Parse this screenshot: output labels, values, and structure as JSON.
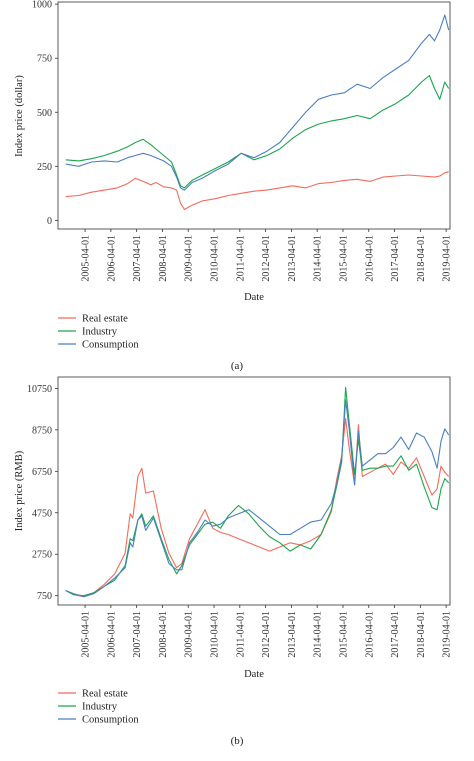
{
  "chart_data": [
    {
      "type": "line",
      "caption": "(a)",
      "xlabel": "Date",
      "ylabel": "Index price (dollar)",
      "ylim": [
        -40,
        1010
      ],
      "yticks": [
        0,
        250,
        500,
        750,
        1000
      ],
      "x_tick_labels": [
        "2005-04-01",
        "2006-04-01",
        "2007-04-01",
        "2008-04-01",
        "2009-04-01",
        "2010-04-01",
        "2011-04-01",
        "2012-04-01",
        "2013-04-01",
        "2014-04-01",
        "2015-04-01",
        "2016-04-01",
        "2017-04-01",
        "2018-04-01",
        "2019-04-01"
      ],
      "xlim": [
        2004.2,
        2019.4
      ],
      "grid": false,
      "legend_position": "bottom-left",
      "series": [
        {
          "name": "Real estate",
          "color": "#f26b5b",
          "x": [
            2004.5,
            2005.0,
            2005.5,
            2006.0,
            2006.5,
            2006.9,
            2007.2,
            2007.5,
            2007.8,
            2008.0,
            2008.3,
            2008.6,
            2008.8,
            2008.95,
            2009.1,
            2009.4,
            2009.8,
            2010.3,
            2010.8,
            2011.3,
            2011.8,
            2012.3,
            2012.8,
            2013.3,
            2013.8,
            2014.3,
            2014.8,
            2015.3,
            2015.8,
            2016.3,
            2016.8,
            2017.3,
            2017.8,
            2018.3,
            2018.8,
            2019.0,
            2019.2,
            2019.35
          ],
          "y": [
            110,
            115,
            130,
            140,
            150,
            170,
            195,
            180,
            165,
            175,
            155,
            150,
            140,
            80,
            50,
            70,
            90,
            100,
            115,
            125,
            135,
            140,
            150,
            160,
            150,
            170,
            175,
            185,
            190,
            180,
            200,
            205,
            210,
            205,
            200,
            205,
            220,
            225
          ]
        },
        {
          "name": "Industry",
          "color": "#1aa64b",
          "x": [
            2004.5,
            2005.0,
            2005.5,
            2006.0,
            2006.5,
            2006.9,
            2007.2,
            2007.5,
            2007.8,
            2008.0,
            2008.3,
            2008.6,
            2008.8,
            2008.95,
            2009.1,
            2009.4,
            2009.8,
            2010.3,
            2010.8,
            2011.3,
            2011.8,
            2012.3,
            2012.8,
            2013.3,
            2013.8,
            2014.3,
            2014.8,
            2015.3,
            2015.8,
            2016.3,
            2016.8,
            2017.3,
            2017.8,
            2018.3,
            2018.6,
            2018.8,
            2019.0,
            2019.2,
            2019.35
          ],
          "y": [
            280,
            275,
            285,
            300,
            320,
            340,
            360,
            375,
            350,
            330,
            300,
            270,
            210,
            160,
            150,
            185,
            210,
            240,
            270,
            310,
            280,
            300,
            330,
            380,
            420,
            445,
            460,
            470,
            485,
            470,
            510,
            540,
            580,
            640,
            670,
            610,
            560,
            640,
            610
          ]
        },
        {
          "name": "Consumption",
          "color": "#4a7fc0",
          "x": [
            2004.5,
            2005.0,
            2005.5,
            2006.0,
            2006.5,
            2006.9,
            2007.2,
            2007.5,
            2007.8,
            2008.0,
            2008.3,
            2008.6,
            2008.8,
            2008.95,
            2009.1,
            2009.4,
            2009.8,
            2010.3,
            2010.8,
            2011.3,
            2011.8,
            2012.3,
            2012.8,
            2013.3,
            2013.8,
            2014.3,
            2014.8,
            2015.3,
            2015.8,
            2016.3,
            2016.8,
            2017.3,
            2017.8,
            2018.3,
            2018.6,
            2018.8,
            2019.0,
            2019.2,
            2019.35
          ],
          "y": [
            260,
            250,
            270,
            275,
            270,
            290,
            300,
            310,
            300,
            290,
            275,
            250,
            200,
            150,
            140,
            175,
            195,
            230,
            260,
            310,
            290,
            320,
            360,
            430,
            500,
            560,
            580,
            590,
            630,
            610,
            660,
            700,
            740,
            820,
            860,
            830,
            880,
            950,
            880
          ]
        }
      ]
    },
    {
      "type": "line",
      "caption": "(b)",
      "xlabel": "Date",
      "ylabel": "Index price (RMB)",
      "ylim": [
        300,
        11300
      ],
      "yticks": [
        750,
        2750,
        4750,
        6750,
        8750,
        10750
      ],
      "x_tick_labels": [
        "2005-04-01",
        "2006-04-01",
        "2007-04-01",
        "2008-04-01",
        "2009-04-01",
        "2010-04-01",
        "2011-04-01",
        "2012-04-01",
        "2013-04-01",
        "2014-04-01",
        "2015-04-01",
        "2016-04-01",
        "2017-04-01",
        "2018-04-01",
        "2019-04-01"
      ],
      "xlim": [
        2004.2,
        2019.4
      ],
      "grid": false,
      "legend_position": "bottom-left",
      "series": [
        {
          "name": "Real estate",
          "color": "#f26b5b",
          "x": [
            2004.5,
            2004.8,
            2005.2,
            2005.6,
            2006.0,
            2006.4,
            2006.8,
            2007.0,
            2007.1,
            2007.3,
            2007.45,
            2007.6,
            2007.9,
            2008.2,
            2008.5,
            2008.8,
            2009.0,
            2009.3,
            2009.6,
            2009.9,
            2010.2,
            2010.5,
            2010.8,
            2011.2,
            2011.6,
            2012.0,
            2012.4,
            2012.8,
            2013.2,
            2013.6,
            2014.0,
            2014.4,
            2014.8,
            2015.0,
            2015.2,
            2015.35,
            2015.5,
            2015.7,
            2015.85,
            2016.0,
            2016.3,
            2016.6,
            2016.9,
            2017.2,
            2017.5,
            2017.8,
            2018.1,
            2018.4,
            2018.7,
            2018.9,
            2019.05,
            2019.2,
            2019.35
          ],
          "y": [
            1000,
            800,
            700,
            900,
            1300,
            1800,
            2800,
            4700,
            4500,
            6500,
            6900,
            5700,
            5800,
            4000,
            2800,
            2100,
            2300,
            3500,
            4200,
            4900,
            4000,
            3800,
            3700,
            3500,
            3300,
            3100,
            2900,
            3100,
            3300,
            3200,
            3400,
            3700,
            4800,
            6300,
            7500,
            9300,
            7800,
            6100,
            9000,
            6500,
            6700,
            6900,
            7100,
            6600,
            7200,
            6900,
            7400,
            6500,
            5600,
            5900,
            7000,
            6700,
            6500
          ]
        },
        {
          "name": "Industry",
          "color": "#1aa64b",
          "x": [
            2004.5,
            2004.8,
            2005.2,
            2005.6,
            2006.0,
            2006.4,
            2006.8,
            2007.0,
            2007.1,
            2007.3,
            2007.45,
            2007.6,
            2007.9,
            2008.2,
            2008.5,
            2008.8,
            2009.0,
            2009.3,
            2009.6,
            2009.9,
            2010.2,
            2010.5,
            2010.8,
            2011.2,
            2011.6,
            2012.0,
            2012.4,
            2012.8,
            2013.2,
            2013.6,
            2014.0,
            2014.4,
            2014.8,
            2015.0,
            2015.2,
            2015.35,
            2015.5,
            2015.7,
            2015.85,
            2016.0,
            2016.3,
            2016.6,
            2016.9,
            2017.2,
            2017.5,
            2017.8,
            2018.1,
            2018.4,
            2018.7,
            2018.9,
            2019.05,
            2019.2,
            2019.35
          ],
          "y": [
            1000,
            800,
            750,
            900,
            1200,
            1500,
            2200,
            3500,
            3400,
            4400,
            4700,
            4100,
            4600,
            3500,
            2500,
            1800,
            2200,
            3200,
            3700,
            4200,
            4300,
            4000,
            4600,
            5100,
            4700,
            4100,
            3600,
            3300,
            2900,
            3200,
            3000,
            3700,
            4900,
            6000,
            7200,
            10800,
            9000,
            6600,
            8300,
            6800,
            6900,
            6900,
            7000,
            7000,
            7500,
            6800,
            7100,
            6000,
            5000,
            4900,
            5900,
            6400,
            6200
          ]
        },
        {
          "name": "Consumption",
          "color": "#4a7fc0",
          "x": [
            2004.5,
            2004.8,
            2005.2,
            2005.6,
            2006.0,
            2006.4,
            2006.8,
            2007.0,
            2007.1,
            2007.3,
            2007.45,
            2007.6,
            2007.9,
            2008.2,
            2008.5,
            2008.8,
            2009.0,
            2009.3,
            2009.6,
            2009.9,
            2010.2,
            2010.5,
            2010.8,
            2011.2,
            2011.6,
            2012.0,
            2012.4,
            2012.8,
            2013.2,
            2013.6,
            2014.0,
            2014.4,
            2014.8,
            2015.0,
            2015.2,
            2015.35,
            2015.5,
            2015.7,
            2015.85,
            2016.0,
            2016.3,
            2016.6,
            2016.9,
            2017.2,
            2017.5,
            2017.8,
            2018.1,
            2018.4,
            2018.7,
            2018.9,
            2019.05,
            2019.2,
            2019.35
          ],
          "y": [
            1000,
            850,
            700,
            850,
            1200,
            1600,
            2100,
            3300,
            3100,
            4400,
            4600,
            3900,
            4500,
            3400,
            2300,
            2000,
            2000,
            3300,
            3800,
            4400,
            4100,
            4200,
            4500,
            4700,
            4900,
            4500,
            4100,
            3700,
            3700,
            4000,
            4300,
            4400,
            5200,
            6100,
            7400,
            10200,
            8700,
            6100,
            8700,
            7000,
            7300,
            7600,
            7600,
            7900,
            8400,
            7800,
            8600,
            8400,
            7700,
            6900,
            8200,
            8800,
            8500
          ]
        }
      ]
    }
  ]
}
